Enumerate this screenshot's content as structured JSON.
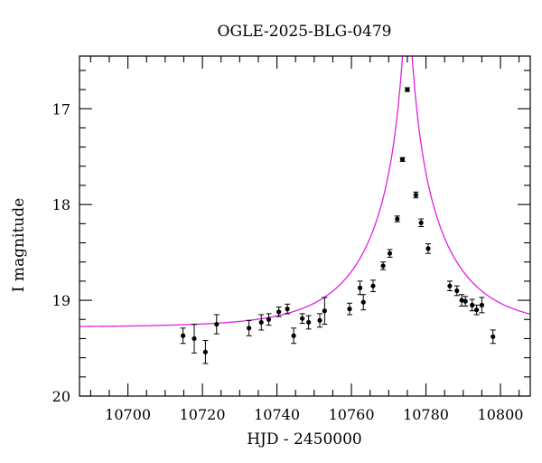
{
  "chart_data": {
    "type": "scatter",
    "title": "OGLE-2025-BLG-0479",
    "xlabel": "HJD - 2450000",
    "ylabel": "I magnitude",
    "xlim": [
      10687,
      10808
    ],
    "ylim": [
      20,
      16.45
    ],
    "y_inverted": true,
    "x_ticks": [
      10700,
      10720,
      10740,
      10760,
      10780,
      10800
    ],
    "y_ticks": [
      17,
      18,
      19,
      20
    ],
    "grid": false,
    "legend": "none",
    "model_color": "#e020e0",
    "point_color": "#000000",
    "model": {
      "t0": 10775.0,
      "tE": 22.0,
      "u0": 0.045,
      "I_base": 19.28
    },
    "points": [
      {
        "x": 714.8,
        "y": 19.37,
        "err": 0.08
      },
      {
        "x": 717.8,
        "y": 19.4,
        "err": 0.15
      },
      {
        "x": 720.8,
        "y": 19.54,
        "err": 0.12
      },
      {
        "x": 723.8,
        "y": 19.25,
        "err": 0.1
      },
      {
        "x": 732.5,
        "y": 19.29,
        "err": 0.08
      },
      {
        "x": 735.8,
        "y": 19.23,
        "err": 0.08
      },
      {
        "x": 737.8,
        "y": 19.2,
        "err": 0.06
      },
      {
        "x": 740.5,
        "y": 19.12,
        "err": 0.05
      },
      {
        "x": 742.8,
        "y": 19.09,
        "err": 0.05
      },
      {
        "x": 744.5,
        "y": 19.37,
        "err": 0.08
      },
      {
        "x": 746.8,
        "y": 19.19,
        "err": 0.05
      },
      {
        "x": 748.5,
        "y": 19.23,
        "err": 0.07
      },
      {
        "x": 751.5,
        "y": 19.21,
        "err": 0.07
      },
      {
        "x": 752.8,
        "y": 19.11,
        "err": 0.14
      },
      {
        "x": 759.5,
        "y": 19.09,
        "err": 0.06
      },
      {
        "x": 762.3,
        "y": 18.87,
        "err": 0.07
      },
      {
        "x": 763.2,
        "y": 19.02,
        "err": 0.08
      },
      {
        "x": 765.8,
        "y": 18.85,
        "err": 0.06
      },
      {
        "x": 768.5,
        "y": 18.64,
        "err": 0.04
      },
      {
        "x": 770.3,
        "y": 18.51,
        "err": 0.04
      },
      {
        "x": 772.3,
        "y": 18.15,
        "err": 0.03
      },
      {
        "x": 773.7,
        "y": 17.53,
        "err": 0.02
      },
      {
        "x": 775.0,
        "y": 16.8,
        "err": 0.02
      },
      {
        "x": 777.3,
        "y": 17.9,
        "err": 0.03
      },
      {
        "x": 778.7,
        "y": 18.19,
        "err": 0.04
      },
      {
        "x": 780.6,
        "y": 18.46,
        "err": 0.05
      },
      {
        "x": 786.4,
        "y": 18.85,
        "err": 0.05
      },
      {
        "x": 788.3,
        "y": 18.9,
        "err": 0.05
      },
      {
        "x": 789.6,
        "y": 19.0,
        "err": 0.06
      },
      {
        "x": 790.6,
        "y": 19.01,
        "err": 0.05
      },
      {
        "x": 792.4,
        "y": 19.05,
        "err": 0.06
      },
      {
        "x": 793.6,
        "y": 19.1,
        "err": 0.05
      },
      {
        "x": 795.0,
        "y": 19.05,
        "err": 0.08
      },
      {
        "x": 798.0,
        "y": 19.38,
        "err": 0.07
      }
    ]
  }
}
